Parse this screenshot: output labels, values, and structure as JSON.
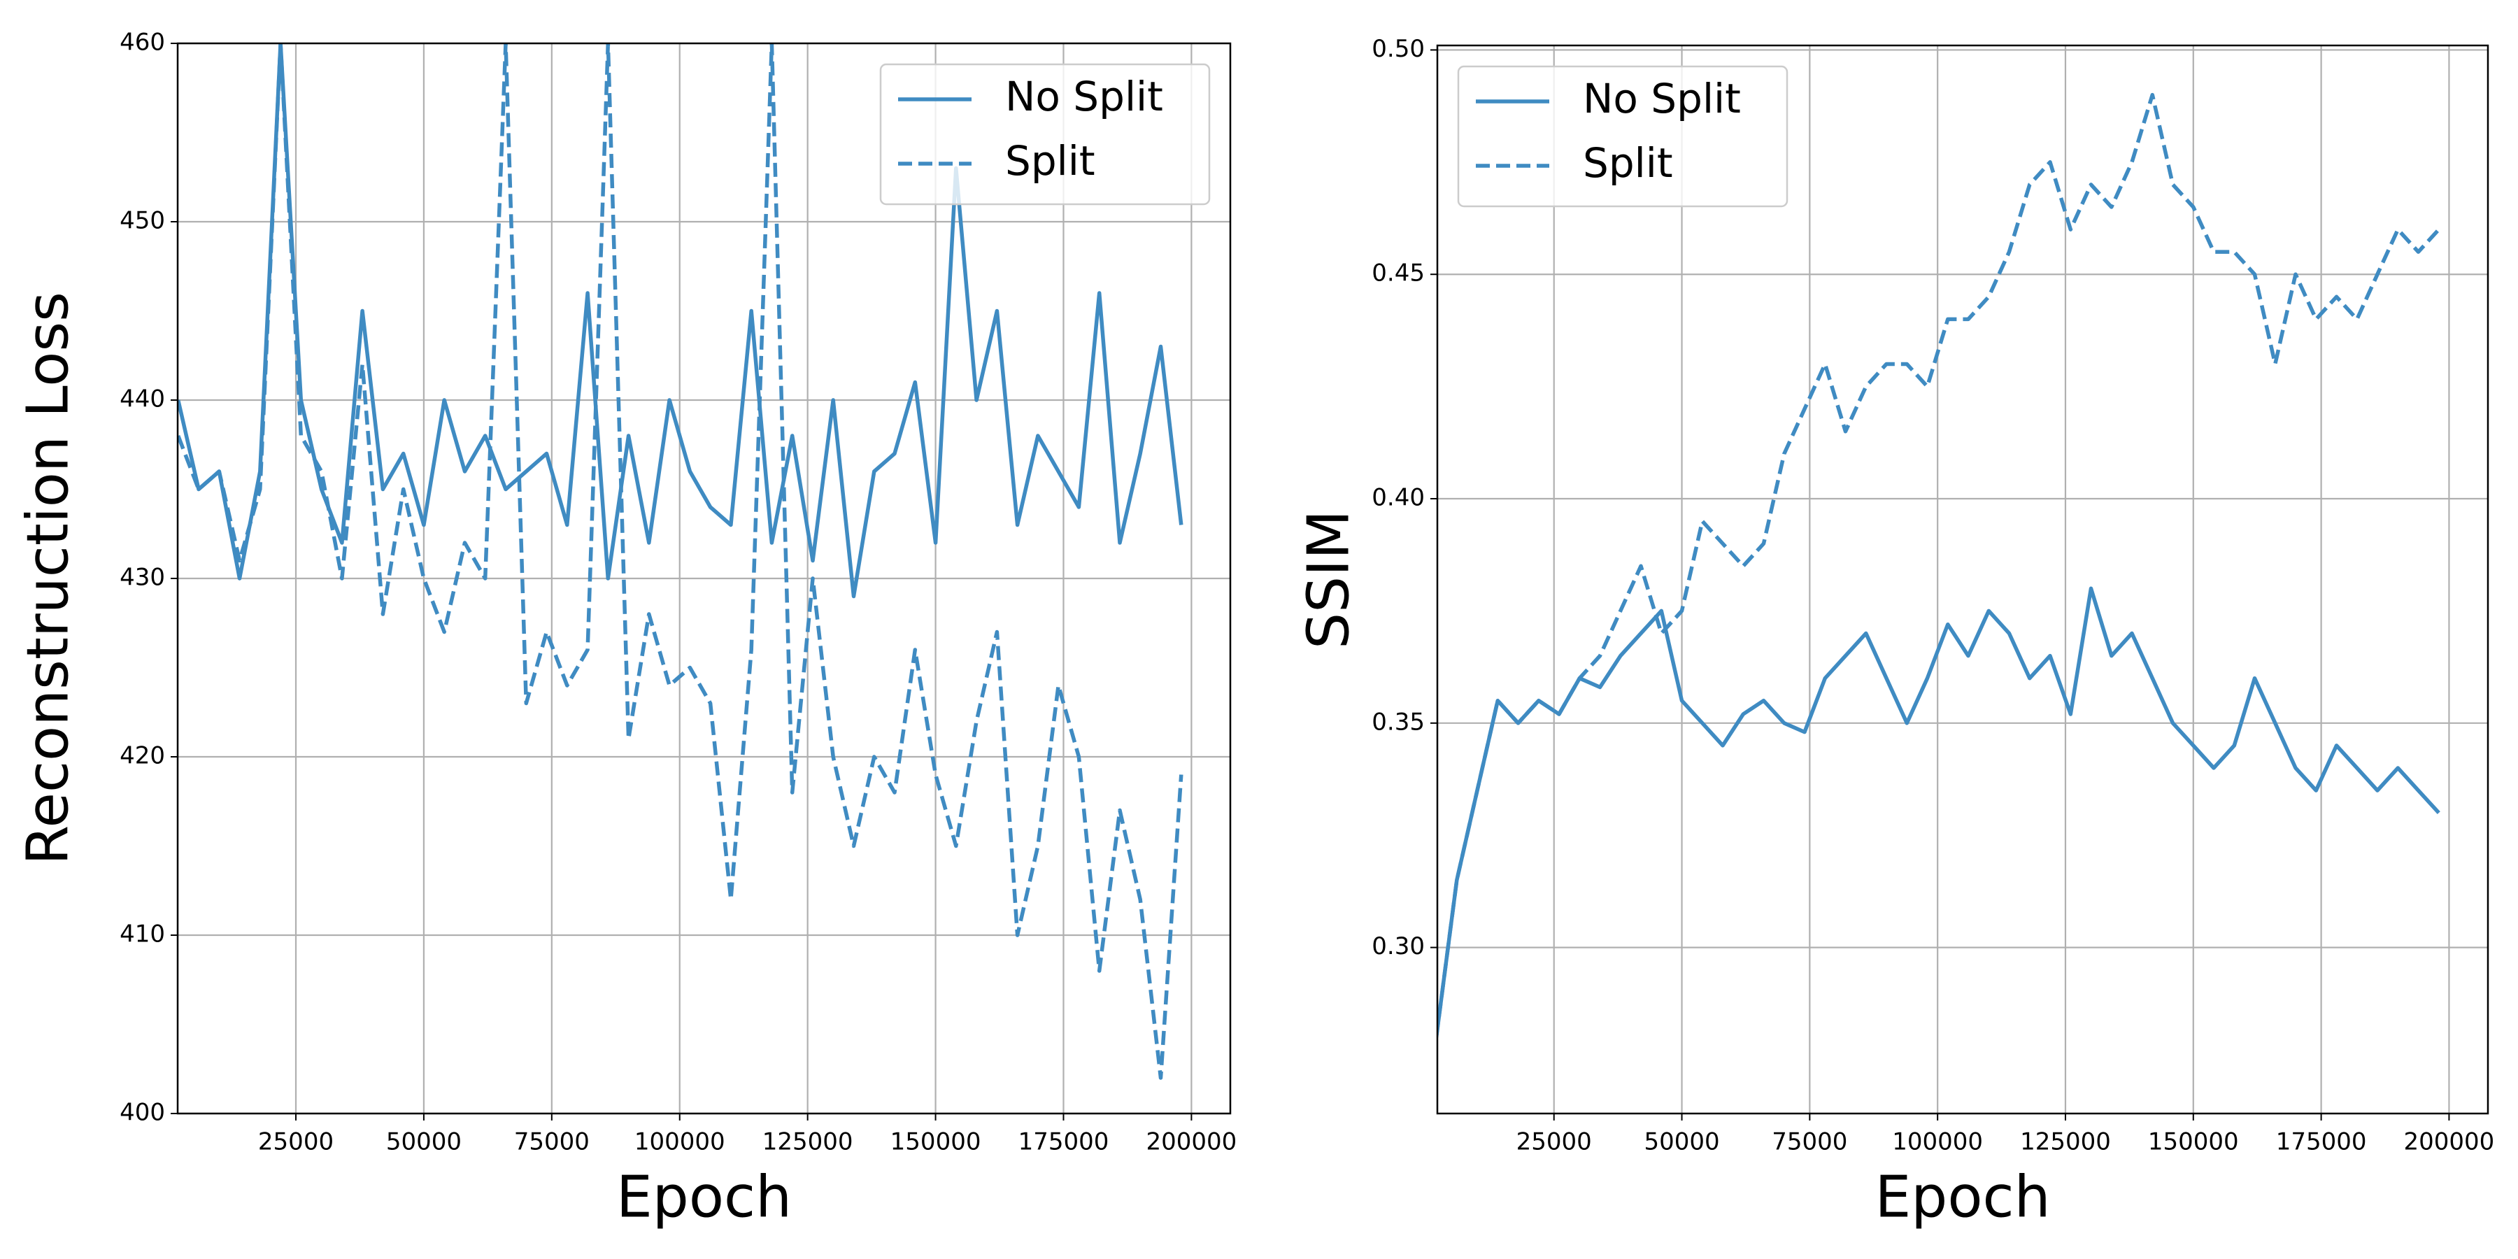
{
  "chart_data": [
    {
      "type": "line",
      "ylabel": "Reconstruction Loss",
      "xlabel": "Epoch",
      "grid": true,
      "legend": "upper right",
      "xlim": [
        1900,
        207600
      ],
      "xticks": [
        25000,
        50000,
        75000,
        100000,
        125000,
        150000,
        175000,
        200000
      ],
      "ylim": [
        400,
        460
      ],
      "yticks": [
        400,
        410,
        420,
        430,
        440,
        450,
        460
      ],
      "x": [
        2000,
        6000,
        10000,
        14000,
        18000,
        22000,
        26000,
        30000,
        34000,
        38000,
        42000,
        46000,
        50000,
        54000,
        58000,
        62000,
        66000,
        70000,
        74000,
        78000,
        82000,
        86000,
        90000,
        94000,
        98000,
        102000,
        106000,
        110000,
        114000,
        118000,
        122000,
        126000,
        130000,
        134000,
        138000,
        142000,
        146000,
        150000,
        154000,
        158000,
        162000,
        166000,
        170000,
        174000,
        178000,
        182000,
        186000,
        190000,
        194000,
        198000
      ],
      "series": [
        {
          "name": "No Split",
          "color": "#3f8bc2",
          "linestyle": "solid",
          "values": [
            440,
            435,
            436,
            430,
            436,
            460,
            440,
            435,
            432,
            445,
            435,
            437,
            433,
            440,
            436,
            438,
            435,
            436,
            437,
            433,
            446,
            430,
            438,
            432,
            440,
            436,
            434,
            433,
            445,
            432,
            438,
            431,
            440,
            429,
            436,
            437,
            441,
            432,
            453,
            440,
            445,
            433,
            438,
            436,
            434,
            446,
            432,
            437,
            443,
            433
          ]
        },
        {
          "name": "Split",
          "color": "#3f8bc2",
          "linestyle": "dashed",
          "values": [
            438,
            435,
            436,
            431,
            435,
            460,
            438,
            436,
            430,
            442,
            428,
            435,
            430,
            427,
            432,
            430,
            460,
            423,
            427,
            424,
            426,
            460,
            421,
            428,
            424,
            425,
            423,
            412,
            426,
            460,
            418,
            430,
            420,
            415,
            420,
            418,
            426,
            419,
            415,
            422,
            427,
            410,
            415,
            424,
            420,
            408,
            417,
            412,
            402,
            419
          ]
        }
      ]
    },
    {
      "type": "line",
      "ylabel": "SSIM",
      "xlabel": "Epoch",
      "grid": true,
      "legend": "upper left",
      "xlim": [
        2200,
        207600
      ],
      "xticks": [
        25000,
        50000,
        75000,
        100000,
        125000,
        150000,
        175000,
        200000
      ],
      "ylim": [
        0.263,
        0.501
      ],
      "yticks": [
        {
          "value": 0.3,
          "label": "0.30"
        },
        {
          "value": 0.35,
          "label": "0.35"
        },
        {
          "value": 0.4,
          "label": "0.40"
        },
        {
          "value": 0.45,
          "label": "0.45"
        },
        {
          "value": 0.5,
          "label": "0.50"
        }
      ],
      "x": [
        2000,
        6000,
        10000,
        14000,
        18000,
        22000,
        26000,
        30000,
        34000,
        38000,
        42000,
        46000,
        50000,
        54000,
        58000,
        62000,
        66000,
        70000,
        74000,
        78000,
        82000,
        86000,
        90000,
        94000,
        98000,
        102000,
        106000,
        110000,
        114000,
        118000,
        122000,
        126000,
        130000,
        134000,
        138000,
        142000,
        146000,
        150000,
        154000,
        158000,
        162000,
        166000,
        170000,
        174000,
        178000,
        182000,
        186000,
        190000,
        194000,
        198000
      ],
      "series": [
        {
          "name": "No Split",
          "color": "#3f8bc2",
          "linestyle": "solid",
          "values": [
            0.28,
            0.315,
            0.335,
            0.355,
            0.35,
            0.355,
            0.352,
            0.36,
            0.358,
            0.365,
            0.37,
            0.375,
            0.355,
            0.35,
            0.345,
            0.352,
            0.355,
            0.35,
            0.348,
            0.36,
            0.365,
            0.37,
            0.36,
            0.35,
            0.36,
            0.372,
            0.365,
            0.375,
            0.37,
            0.36,
            0.365,
            0.352,
            0.38,
            0.365,
            0.37,
            0.36,
            0.35,
            0.345,
            0.34,
            0.345,
            0.36,
            0.35,
            0.34,
            0.335,
            0.345,
            0.34,
            0.335,
            0.34,
            0.335,
            0.33
          ]
        },
        {
          "name": "Split",
          "color": "#3f8bc2",
          "linestyle": "dashed",
          "values": [
            0.28,
            0.315,
            0.335,
            0.355,
            0.35,
            0.355,
            0.352,
            0.36,
            0.365,
            0.375,
            0.385,
            0.37,
            0.375,
            0.395,
            0.39,
            0.385,
            0.39,
            0.41,
            0.42,
            0.43,
            0.415,
            0.425,
            0.43,
            0.43,
            0.425,
            0.44,
            0.44,
            0.445,
            0.455,
            0.47,
            0.475,
            0.46,
            0.47,
            0.465,
            0.475,
            0.49,
            0.47,
            0.465,
            0.455,
            0.455,
            0.45,
            0.43,
            0.45,
            0.44,
            0.445,
            0.44,
            0.45,
            0.46,
            0.455,
            0.46
          ]
        }
      ]
    }
  ]
}
